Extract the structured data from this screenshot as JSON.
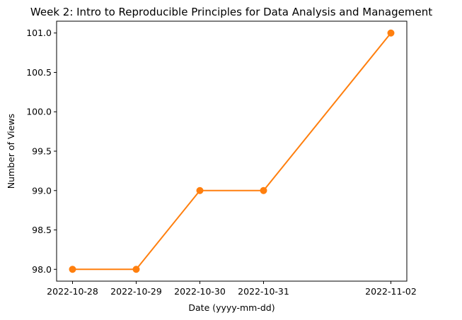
{
  "chart_data": {
    "type": "line",
    "title": "Week 2: Intro to Reproducible Principles for Data Analysis and Management",
    "xlabel": "Date (yyyy-mm-dd)",
    "ylabel": "Number of Views",
    "x": [
      "2022-10-28",
      "2022-10-29",
      "2022-10-30",
      "2022-10-31",
      "2022-11-02"
    ],
    "x_tick_labels": [
      "2022-10-28",
      "2022-10-29",
      "2022-10-30",
      "2022-10-31",
      "2022-11-02"
    ],
    "y_tick_values": [
      98.0,
      98.5,
      99.0,
      99.5,
      100.0,
      100.5,
      101.0
    ],
    "y_tick_labels": [
      "98.0",
      "98.5",
      "99.0",
      "99.5",
      "100.0",
      "100.5",
      "101.0"
    ],
    "ylim": [
      97.85,
      101.15
    ],
    "xlim": [
      "2022-10-27T18:00",
      "2022-11-02T06:00"
    ],
    "grid": false,
    "series": [
      {
        "values": [
          98,
          98,
          99,
          99,
          101
        ],
        "color": "#ff7f0e",
        "marker": "circle"
      }
    ]
  }
}
